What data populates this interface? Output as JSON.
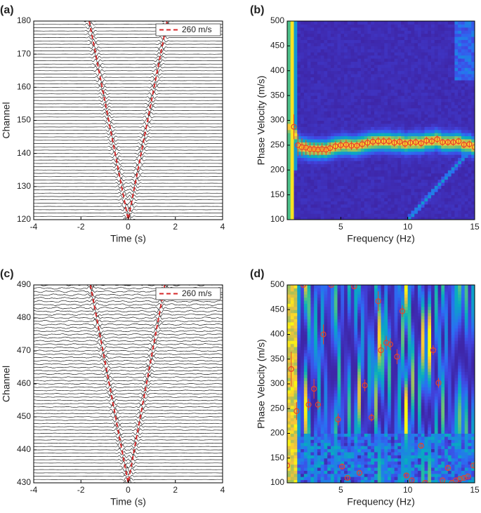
{
  "chart_data": [
    {
      "type": "line",
      "label": "(a)",
      "xlabel": "Time (s)",
      "ylabel": "Channel",
      "xlim": [
        -4,
        4
      ],
      "xticks": [
        -4,
        -2,
        0,
        2,
        4
      ],
      "ylim": [
        120,
        180
      ],
      "yticks": [
        120,
        130,
        140,
        150,
        160,
        170,
        180
      ],
      "legend": "upper right",
      "series": [
        {
          "name": "260 m/s",
          "color": "#d62728",
          "dashed": true,
          "x": [
            -1.65,
            0,
            1.65
          ],
          "values": [
            180,
            120,
            180
          ]
        }
      ]
    },
    {
      "type": "scatter",
      "label": "(b)",
      "xlabel": "Frequency (Hz)",
      "ylabel": "Phase Velocity (m/s)",
      "xlim": [
        1,
        15
      ],
      "xticks": [
        5,
        10,
        15
      ],
      "ylim": [
        100,
        500
      ],
      "yticks": [
        100,
        150,
        200,
        250,
        300,
        350,
        400,
        450,
        500
      ],
      "series": [
        {
          "color": "#e8432a",
          "x": [
            1.5,
            1.8,
            2.1,
            2.4,
            2.7,
            3.0,
            3.3,
            3.6,
            3.9,
            4.2,
            4.6,
            5.0,
            5.4,
            5.8,
            6.2,
            6.6,
            7.0,
            7.4,
            7.8,
            8.2,
            8.6,
            9.0,
            9.4,
            9.8,
            10.2,
            10.6,
            11.0,
            11.4,
            11.8,
            12.2,
            12.6,
            13.0,
            13.4,
            13.8,
            14.2,
            14.6,
            15.0
          ],
          "values": [
            287,
            250,
            246,
            245,
            242,
            242,
            241,
            242,
            241,
            244,
            248,
            250,
            251,
            249,
            249,
            252,
            255,
            257,
            258,
            258,
            258,
            255,
            257,
            253,
            255,
            256,
            254,
            259,
            258,
            262,
            256,
            256,
            256,
            258,
            251,
            252,
            246
          ],
          "errors": [
            25,
            22,
            18,
            15,
            14,
            13,
            12,
            12,
            11,
            11,
            10,
            10,
            10,
            9,
            9,
            9,
            9,
            9,
            9,
            8,
            8,
            8,
            8,
            8,
            8,
            8,
            8,
            8,
            8,
            8,
            7,
            7,
            7,
            7,
            7,
            7,
            7
          ]
        }
      ]
    },
    {
      "type": "line",
      "label": "(c)",
      "xlabel": "Time (s)",
      "ylabel": "Channel",
      "xlim": [
        -4,
        4
      ],
      "xticks": [
        -4,
        -2,
        0,
        2,
        4
      ],
      "ylim": [
        430,
        490
      ],
      "yticks": [
        430,
        440,
        450,
        460,
        470,
        480,
        490
      ],
      "legend": "upper right",
      "series": [
        {
          "name": "260 m/s",
          "color": "#d62728",
          "dashed": true,
          "x": [
            -1.6,
            0,
            1.55
          ],
          "values": [
            490,
            430,
            490
          ]
        }
      ]
    },
    {
      "type": "scatter",
      "label": "(d)",
      "xlabel": "Frequency (Hz)",
      "ylabel": "Phase Velocity (m/s)",
      "xlim": [
        1,
        15
      ],
      "xticks": [
        5,
        10,
        15
      ],
      "ylim": [
        100,
        500
      ],
      "yticks": [
        100,
        150,
        200,
        250,
        300,
        350,
        400,
        450,
        500
      ],
      "series": [
        {
          "color": "#e8432a",
          "x": [
            1.0,
            1.3,
            1.7,
            2.2,
            2.6,
            3.0,
            3.3,
            3.7,
            4.3,
            4.8,
            5.1,
            5.5,
            6.0,
            6.4,
            6.8,
            7.3,
            7.8,
            8.0,
            8.4,
            8.7,
            9.2,
            9.6,
            9.9,
            10.3,
            11.0,
            11.3,
            11.9,
            12.3,
            12.6,
            13.0,
            13.3,
            13.6,
            13.9,
            14.2,
            14.5,
            14.9
          ],
          "values": [
            135,
            330,
            245,
            500,
            258,
            290,
            258,
            400,
            500,
            228,
            133,
            110,
            497,
            120,
            297,
            232,
            467,
            368,
            383,
            380,
            355,
            447,
            115,
            105,
            175,
            100,
            368,
            302,
            105,
            130,
            100,
            105,
            108,
            110,
            113,
            135
          ],
          "errors": [
            10,
            35,
            18,
            3,
            12,
            20,
            10,
            20,
            3,
            12,
            5,
            3,
            5,
            4,
            12,
            8,
            20,
            12,
            14,
            12,
            15,
            12,
            4,
            3,
            4,
            3,
            10,
            10,
            3,
            5,
            3,
            3,
            3,
            3,
            3,
            5
          ]
        }
      ]
    }
  ]
}
